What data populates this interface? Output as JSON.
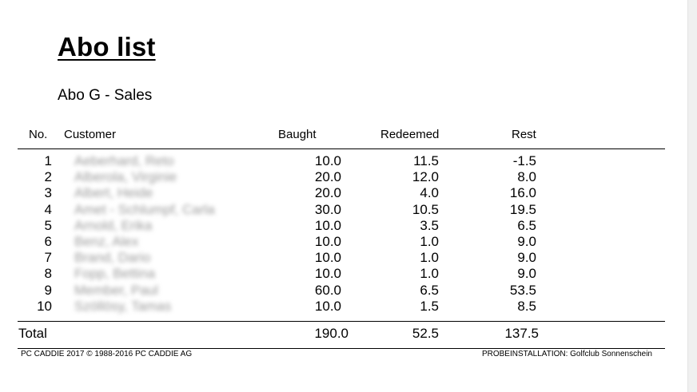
{
  "report": {
    "title": "Abo list",
    "subtitle": "Abo G - Sales"
  },
  "table": {
    "headers": {
      "no": "No.",
      "customer": "Customer",
      "baught": "Baught",
      "redeemed": "Redeemed",
      "rest": "Rest"
    },
    "rows": [
      {
        "no": "1",
        "customer": "Aeberhard, Reto",
        "baught": "10.0",
        "redeemed": "11.5",
        "rest": "-1.5"
      },
      {
        "no": "2",
        "customer": "Alberola, Virginie",
        "baught": "20.0",
        "redeemed": "12.0",
        "rest": "8.0"
      },
      {
        "no": "3",
        "customer": "Albert, Heide",
        "baught": "20.0",
        "redeemed": "4.0",
        "rest": "16.0"
      },
      {
        "no": "4",
        "customer": "Amet - Schlumpf, Carla",
        "baught": "30.0",
        "redeemed": "10.5",
        "rest": "19.5"
      },
      {
        "no": "5",
        "customer": "Arnold, Erika",
        "baught": "10.0",
        "redeemed": "3.5",
        "rest": "6.5"
      },
      {
        "no": "6",
        "customer": "Benz, Alex",
        "baught": "10.0",
        "redeemed": "1.0",
        "rest": "9.0"
      },
      {
        "no": "7",
        "customer": "Brand, Dario",
        "baught": "10.0",
        "redeemed": "1.0",
        "rest": "9.0"
      },
      {
        "no": "8",
        "customer": "Fopp, Bettina",
        "baught": "10.0",
        "redeemed": "1.0",
        "rest": "9.0"
      },
      {
        "no": "9",
        "customer": "Member, Paul",
        "baught": "60.0",
        "redeemed": "6.5",
        "rest": "53.5"
      },
      {
        "no": "10",
        "customer": "Szöllösy, Tamas",
        "baught": "10.0",
        "redeemed": "1.5",
        "rest": "8.5"
      }
    ],
    "total": {
      "label": "Total",
      "baught": "190.0",
      "redeemed": "52.5",
      "rest": "137.5"
    }
  },
  "footer": {
    "left": "PC CADDIE 2017  © 1988-2016 PC CADDIE AG",
    "right": "PROBEINSTALLATION: Golfclub Sonnenschein"
  }
}
